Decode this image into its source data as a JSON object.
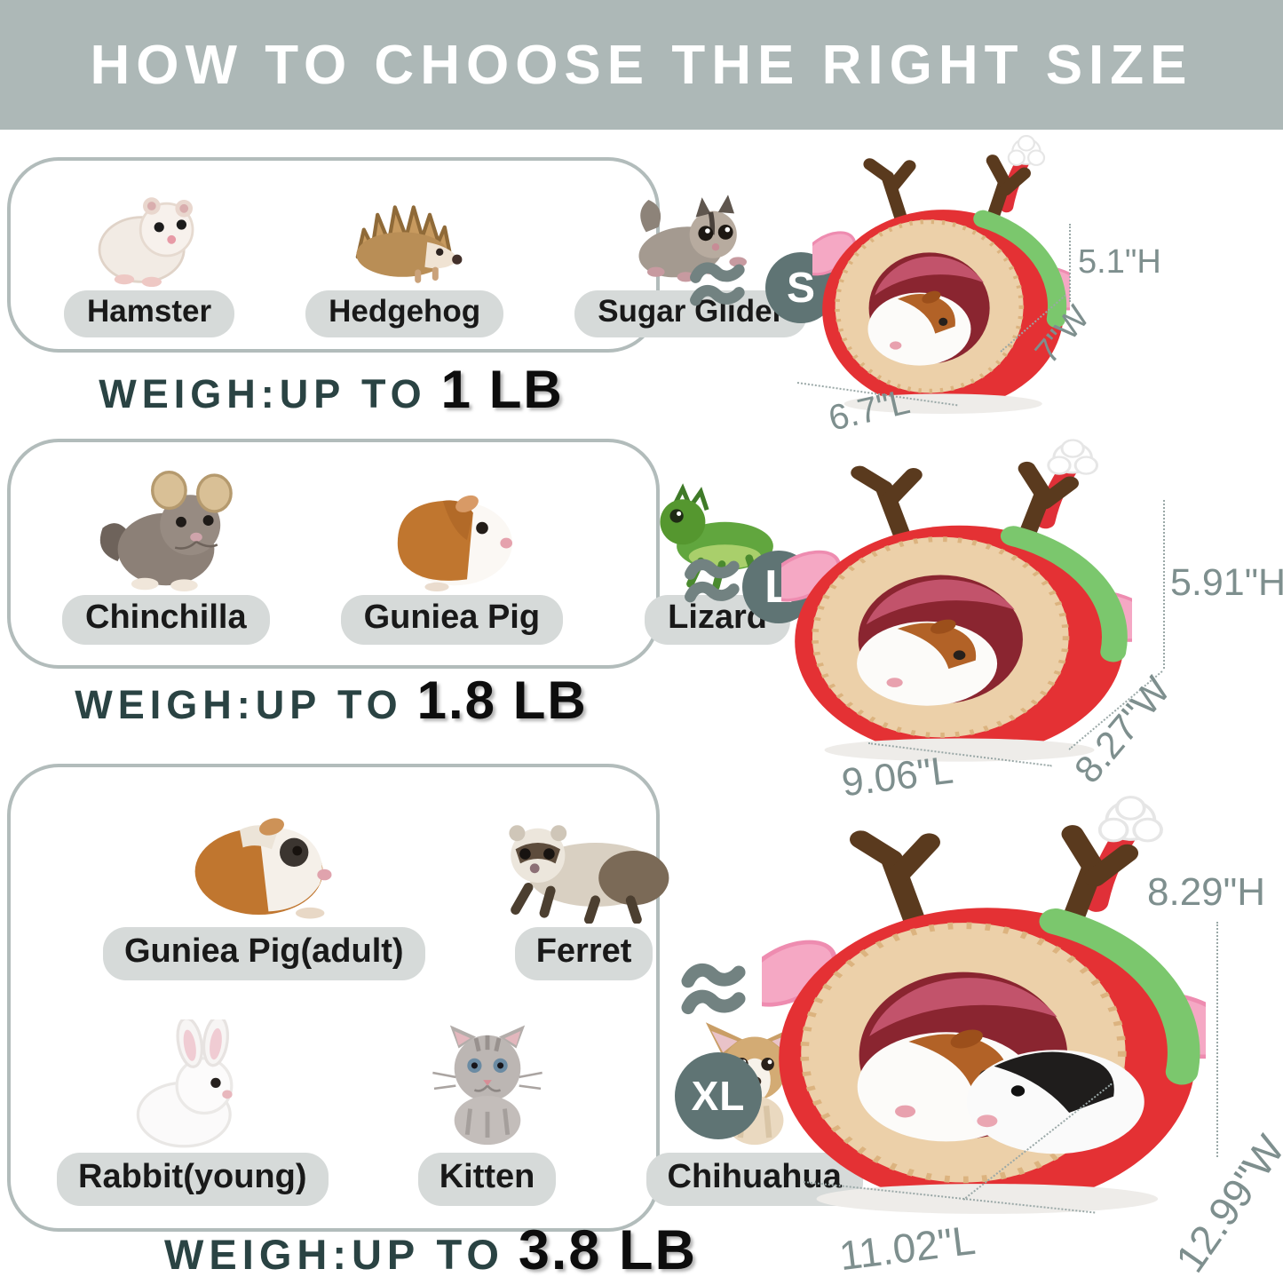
{
  "header": {
    "title": "HOW TO CHOOSE THE RIGHT SIZE"
  },
  "approx_symbol": "≈",
  "groups": [
    {
      "size_label": "S",
      "weight_prefix": "WEIGH:UP TO",
      "weight_value": "1 LB",
      "animals": [
        {
          "label": "Hamster",
          "icon": "hamster-icon"
        },
        {
          "label": "Hedgehog",
          "icon": "hedgehog-icon"
        },
        {
          "label": "Sugar Glider",
          "icon": "sugar-glider-icon"
        }
      ],
      "dimensions": {
        "height": "5.1\"H",
        "width": "7\"W",
        "length": "6.7\"L"
      }
    },
    {
      "size_label": "L",
      "weight_prefix": "WEIGH:UP TO",
      "weight_value": "1.8 LB",
      "animals": [
        {
          "label": "Chinchilla",
          "icon": "chinchilla-icon"
        },
        {
          "label": "Guniea Pig",
          "icon": "guinea-pig-icon"
        },
        {
          "label": "Lizard",
          "icon": "lizard-icon"
        }
      ],
      "dimensions": {
        "height": "5.91\"H",
        "width": "8.27\"W",
        "length": "9.06\"L"
      }
    },
    {
      "size_label": "XL",
      "weight_prefix": "WEIGH:UP TO",
      "weight_value": "3.8 LB",
      "animals": [
        {
          "label": "Guniea Pig(adult)",
          "icon": "guinea-pig-adult-icon"
        },
        {
          "label": "Ferret",
          "icon": "ferret-icon"
        },
        {
          "label": "Rabbit(young)",
          "icon": "rabbit-icon"
        },
        {
          "label": "Kitten",
          "icon": "kitten-icon"
        },
        {
          "label": "Chihuahua",
          "icon": "chihuahua-icon"
        }
      ],
      "dimensions": {
        "height": "8.29\"H",
        "width": "12.99\"W",
        "length": "11.02\"L"
      }
    }
  ],
  "product": {
    "icon": "reindeer-pet-bed-illustration"
  },
  "colors": {
    "header_bg": "#adb8b7",
    "badge": "#5f7474",
    "approx": "#728281",
    "dimension_text": "#7e8f8e",
    "weight_prefix_text": "#2a4343",
    "pill_bg": "#d6dad9",
    "bed_red": "#e43134"
  }
}
